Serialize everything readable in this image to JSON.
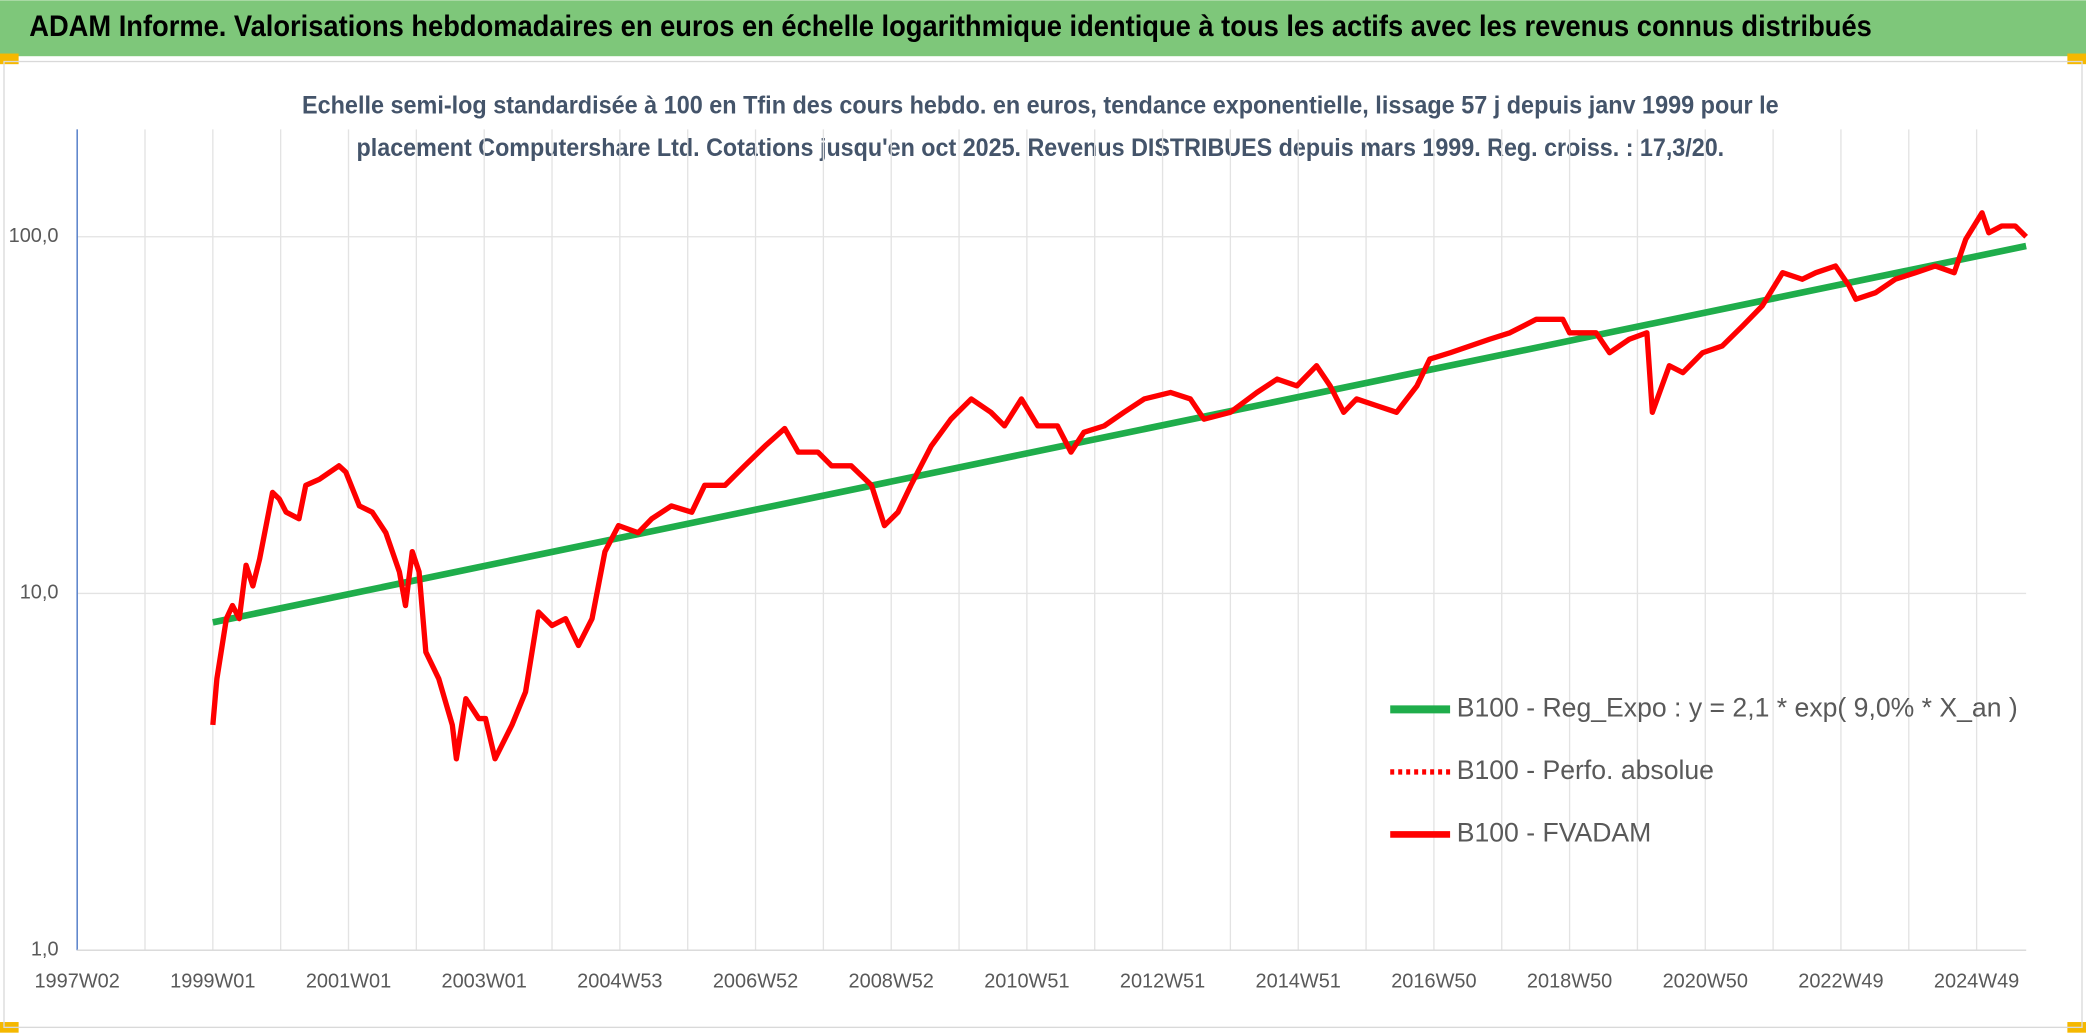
{
  "chart_data": {
    "type": "line",
    "title": "ADAM Informe. Valorisations hebdomadaires en euros en échelle logarithmique identique à tous les actifs avec les revenus connus distribués",
    "subtitle": [
      "Echelle semi-log standardisée à 100 en Tfin des cours hebdo. en euros, tendance exponentielle, lissage 57 j depuis janv 1999 pour le",
      "placement Computershare Ltd. Cotations jusqu'en oct 2025. Revenus DISTRIBUES depuis mars 1999. Reg. croiss. : 17,3/20."
    ],
    "log_scale": true,
    "grid": true,
    "legend": "lower right",
    "xlim": [
      1997,
      2025.73
    ],
    "xticks": [
      {
        "value": 1997,
        "label": "1997W02"
      },
      {
        "value": 1999,
        "label": "1999W01"
      },
      {
        "value": 2001,
        "label": "2001W01"
      },
      {
        "value": 2003,
        "label": "2003W01"
      },
      {
        "value": 2005,
        "label": "2004W53"
      },
      {
        "value": 2007,
        "label": "2006W52"
      },
      {
        "value": 2009,
        "label": "2008W52"
      },
      {
        "value": 2011,
        "label": "2010W51"
      },
      {
        "value": 2013,
        "label": "2012W51"
      },
      {
        "value": 2015,
        "label": "2014W51"
      },
      {
        "value": 2017,
        "label": "2016W50"
      },
      {
        "value": 2019,
        "label": "2018W50"
      },
      {
        "value": 2021,
        "label": "2020W50"
      },
      {
        "value": 2023,
        "label": "2022W49"
      },
      {
        "value": 2025,
        "label": "2024W49"
      }
    ],
    "xminorticks": [
      1998,
      2000,
      2002,
      2004,
      2006,
      2008,
      2010,
      2012,
      2014,
      2016,
      2018,
      2020,
      2022,
      2024
    ],
    "ylim": [
      1,
      200
    ],
    "yticks": [
      {
        "value": 1,
        "label": "1,0"
      },
      {
        "value": 10,
        "label": "10,0"
      },
      {
        "value": 100,
        "label": "100,0"
      }
    ],
    "series": [
      {
        "name": "B100 - Reg_Expo : y = 2,1 * exp( 9,0% *  X_an )",
        "color": "#1fad4b",
        "width": 5,
        "x": [
          1999,
          2025.73
        ],
        "values": [
          8.3,
          94.2
        ]
      },
      {
        "name": "B100 - Perfo. absolue",
        "color": "#ff0000",
        "width": 3,
        "dash": "3 3"
      },
      {
        "name": "B100 - FVADAM",
        "color": "#ff0000",
        "width": 4,
        "x": [
          1999.0,
          1999.06,
          1999.2,
          1999.29,
          1999.39,
          1999.49,
          1999.59,
          1999.69,
          1999.88,
          1999.98,
          2000.08,
          2000.27,
          2000.37,
          2000.57,
          2000.86,
          2000.96,
          2001.16,
          2001.35,
          2001.55,
          2001.75,
          2001.84,
          2001.94,
          2002.04,
          2002.14,
          2002.33,
          2002.53,
          2002.59,
          2002.73,
          2002.92,
          2003.02,
          2003.16,
          2003.41,
          2003.61,
          2003.8,
          2004.0,
          2004.2,
          2004.39,
          2004.59,
          2004.78,
          2004.98,
          2005.27,
          2005.47,
          2005.76,
          2006.06,
          2006.25,
          2006.55,
          2006.84,
          2007.14,
          2007.43,
          2007.63,
          2007.92,
          2008.12,
          2008.41,
          2008.71,
          2008.9,
          2009.1,
          2009.29,
          2009.59,
          2009.88,
          2010.18,
          2010.47,
          2010.67,
          2010.92,
          2011.16,
          2011.45,
          2011.65,
          2011.84,
          2012.14,
          2012.43,
          2012.73,
          2013.12,
          2013.41,
          2013.61,
          2014.0,
          2014.39,
          2014.69,
          2014.98,
          2015.27,
          2015.47,
          2015.67,
          2015.86,
          2016.16,
          2016.45,
          2016.75,
          2016.94,
          2017.24,
          2017.53,
          2017.82,
          2018.12,
          2018.51,
          2018.9,
          2019.0,
          2019.39,
          2019.59,
          2019.88,
          2020.14,
          2020.22,
          2020.47,
          2020.67,
          2020.96,
          2021.25,
          2021.55,
          2021.84,
          2022.14,
          2022.43,
          2022.63,
          2022.92,
          2023.12,
          2023.22,
          2023.51,
          2023.8,
          2024.1,
          2024.39,
          2024.67,
          2024.84,
          2025.08,
          2025.18,
          2025.37,
          2025.57,
          2025.73
        ],
        "values": [
          4.28,
          5.77,
          8.5,
          9.25,
          8.5,
          12.0,
          10.5,
          12.5,
          19.2,
          18.4,
          16.9,
          16.2,
          20.1,
          20.9,
          22.8,
          21.9,
          17.6,
          16.9,
          14.8,
          11.5,
          9.25,
          13.1,
          11.5,
          6.85,
          5.77,
          4.28,
          3.44,
          5.07,
          4.46,
          4.46,
          3.44,
          4.28,
          5.3,
          8.87,
          8.13,
          8.5,
          7.15,
          8.5,
          13.1,
          15.5,
          14.8,
          16.2,
          17.6,
          16.9,
          20.1,
          20.1,
          22.8,
          25.9,
          29.0,
          24.9,
          24.9,
          22.8,
          22.8,
          20.1,
          15.5,
          16.9,
          20.1,
          25.9,
          30.8,
          35.1,
          32.2,
          29.5,
          35.1,
          29.5,
          29.5,
          24.9,
          28.3,
          29.5,
          32.2,
          35.1,
          36.6,
          35.1,
          30.8,
          32.2,
          36.6,
          39.9,
          38.2,
          43.5,
          38.2,
          32.2,
          35.1,
          33.6,
          32.2,
          38.2,
          45.4,
          47.3,
          49.4,
          51.6,
          53.8,
          58.7,
          58.7,
          53.8,
          53.8,
          47.3,
          51.6,
          53.8,
          32.2,
          43.5,
          41.6,
          47.3,
          49.4,
          56.2,
          64.0,
          79.3,
          76.0,
          79.3,
          82.8,
          72.8,
          66.8,
          69.7,
          76.0,
          79.3,
          82.8,
          79.3,
          98.4,
          116.7,
          102.6,
          107.2,
          107.2,
          100
        ]
      }
    ]
  }
}
